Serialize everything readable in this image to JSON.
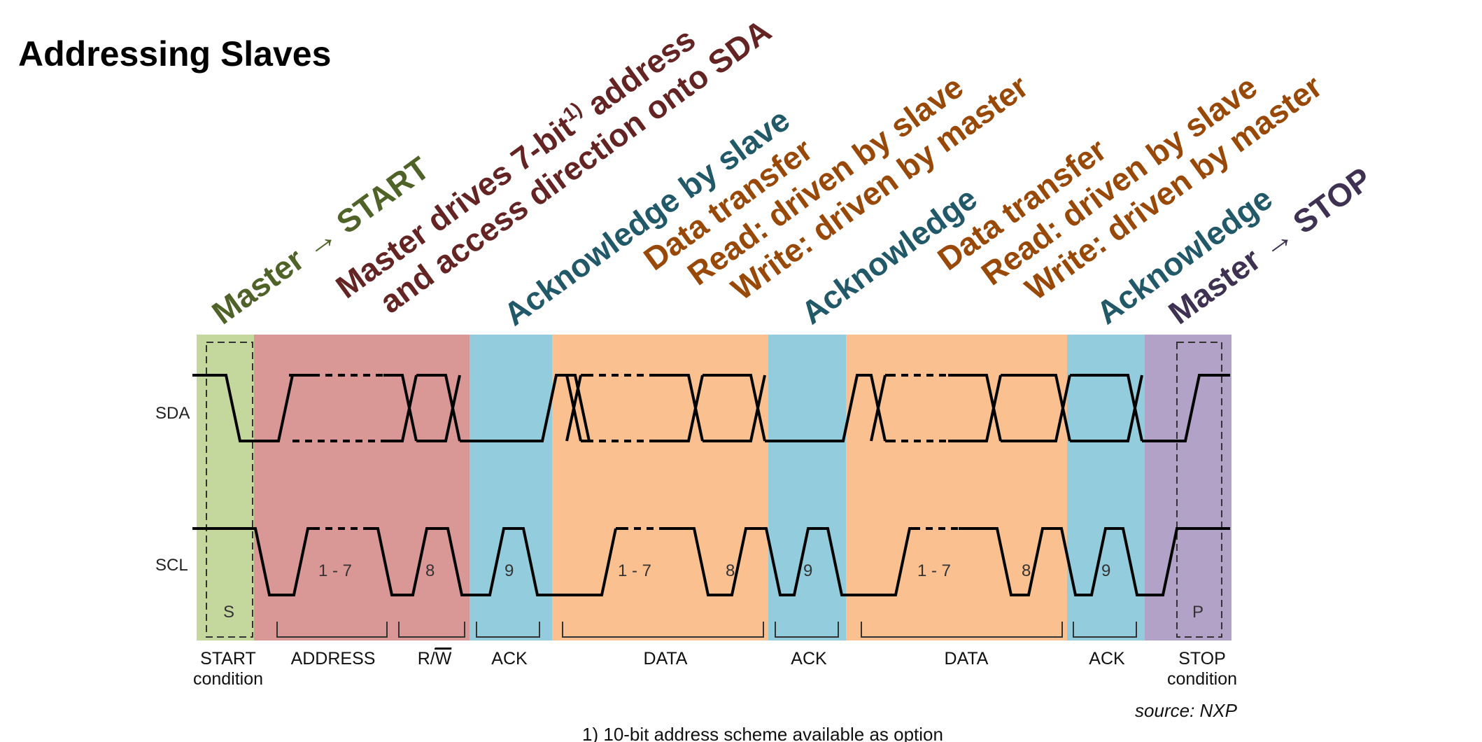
{
  "title": "Addressing Slaves",
  "colors": {
    "start_region": "#c4d89e",
    "address_region": "#d99795",
    "ack_region": "#93cddd",
    "data_region": "#fac090",
    "stop_region": "#b3a2c7",
    "green_text": "#4f6228",
    "maroon_text": "#632423",
    "teal_text": "#215968",
    "brown_text": "#984807",
    "purple_text": "#3f3151"
  },
  "annotations": {
    "start": "Master → START",
    "address_line1": "Master drives 7-bit",
    "address_sup": "1)",
    "address_line1_end": " address",
    "address_line2": "and access direction onto SDA",
    "ack1": "Acknowledge by slave",
    "data1_line1": "Data transfer",
    "data1_line2": "Read: driven by slave",
    "data1_line3": "Write: driven by master",
    "ack2": "Acknowledge",
    "data2_line1": "Data transfer",
    "data2_line2": "Read: driven by slave",
    "data2_line3": "Write: driven by master",
    "ack3": "Acknowledge",
    "stop": "Master → STOP"
  },
  "signals": {
    "sda": "SDA",
    "scl": "SCL"
  },
  "clock_labels": {
    "s": "S",
    "addr_bits": "1 - 7",
    "rw_bit": "8",
    "ack1_bit": "9",
    "data1_bits": "1 - 7",
    "data1_bit8": "8",
    "ack2_bit": "9",
    "data2_bits": "1 - 7",
    "data2_bit8": "8",
    "ack3_bit": "9",
    "p": "P"
  },
  "bottom_labels": {
    "start_line1": "START",
    "start_line2": "condition",
    "address": "ADDRESS",
    "rw": "R/W",
    "rw_r": "R/",
    "rw_w": "W",
    "ack1": "ACK",
    "data1": "DATA",
    "ack2": "ACK",
    "data2": "DATA",
    "ack3": "ACK",
    "stop_line1": "STOP",
    "stop_line2": "condition"
  },
  "source": "source: NXP",
  "footnote": "1) 10-bit address scheme available as option"
}
